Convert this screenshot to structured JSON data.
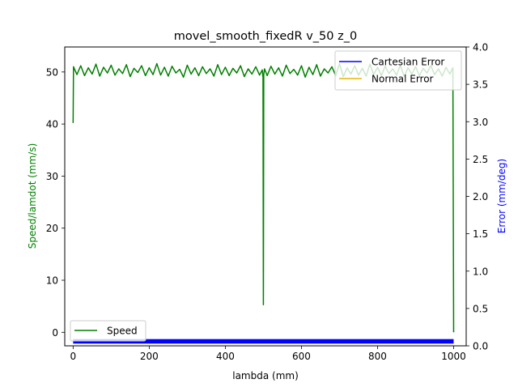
{
  "chart_data": {
    "type": "line",
    "title": "movel_smooth_fixedR v_50 z_0",
    "xlabel": "lambda (mm)",
    "ylabel_left": "Speed/lamdot (mm/s)",
    "ylabel_right": "Error (mm/deg)",
    "xlim": [
      -22,
      1033
    ],
    "ylim_left": [
      -2.6,
      54.8
    ],
    "ylim_right": [
      0.0,
      4.0
    ],
    "x_ticks": [
      0,
      200,
      400,
      600,
      800,
      1000
    ],
    "x_tick_labels": [
      "0",
      "200",
      "400",
      "600",
      "800",
      "1000"
    ],
    "y_left_ticks": [
      0,
      10,
      20,
      30,
      40,
      50
    ],
    "y_left_tick_labels": [
      "0",
      "10",
      "20",
      "30",
      "40",
      "50"
    ],
    "y_right_ticks": [
      0.0,
      0.5,
      1.0,
      1.5,
      2.0,
      2.5,
      3.0,
      3.5,
      4.0
    ],
    "y_right_tick_labels": [
      "0.0",
      "0.5",
      "1.0",
      "1.5",
      "2.0",
      "2.5",
      "3.0",
      "3.5",
      "4.0"
    ],
    "grid": false,
    "legends": [
      {
        "placement": "lower-left",
        "entries": [
          {
            "name": "Speed",
            "color": "#008000"
          }
        ]
      },
      {
        "placement": "upper-right",
        "entries": [
          {
            "name": "Cartesian Error",
            "color": "#0000ff"
          },
          {
            "name": "Normal Error",
            "color": "#e6b800"
          }
        ]
      }
    ],
    "series": [
      {
        "name": "Speed",
        "axis": "left",
        "color": "#008000",
        "x": [
          0,
          1,
          10,
          20,
          30,
          40,
          50,
          60,
          70,
          80,
          90,
          100,
          110,
          120,
          130,
          140,
          150,
          160,
          170,
          180,
          190,
          200,
          210,
          220,
          230,
          240,
          250,
          260,
          270,
          280,
          290,
          300,
          310,
          320,
          330,
          340,
          350,
          360,
          370,
          380,
          390,
          400,
          410,
          420,
          430,
          440,
          450,
          460,
          470,
          480,
          490,
          497,
          499,
          500,
          501,
          503,
          510,
          520,
          530,
          540,
          550,
          560,
          570,
          580,
          590,
          600,
          610,
          620,
          630,
          640,
          650,
          660,
          670,
          680,
          690,
          700,
          710,
          720,
          730,
          740,
          750,
          760,
          770,
          780,
          790,
          800,
          810,
          820,
          830,
          840,
          850,
          860,
          870,
          880,
          890,
          900,
          910,
          920,
          930,
          940,
          950,
          960,
          970,
          980,
          990,
          995,
          998,
          1000
        ],
        "y": [
          40.2,
          51.0,
          49.5,
          51.2,
          49.3,
          50.8,
          49.6,
          51.5,
          49.2,
          50.9,
          49.8,
          51.3,
          49.4,
          50.6,
          49.7,
          51.4,
          49.1,
          50.7,
          49.9,
          51.2,
          49.3,
          50.8,
          49.5,
          51.6,
          49.4,
          50.9,
          49.2,
          51.1,
          49.8,
          50.5,
          49.0,
          51.3,
          49.6,
          50.8,
          49.3,
          51.0,
          49.7,
          50.6,
          49.2,
          51.4,
          49.5,
          50.9,
          49.3,
          50.7,
          49.8,
          51.2,
          49.1,
          50.6,
          49.6,
          51.0,
          49.4,
          50.4,
          49.0,
          5.3,
          49.5,
          50.6,
          49.3,
          51.1,
          49.6,
          50.8,
          49.2,
          51.3,
          49.7,
          50.5,
          49.4,
          51.2,
          49.0,
          50.9,
          49.5,
          51.4,
          49.2,
          50.6,
          49.8,
          51.0,
          49.3,
          51.6,
          49.1,
          50.8,
          49.6,
          51.2,
          49.4,
          50.7,
          49.2,
          51.5,
          49.5,
          50.9,
          49.3,
          51.1,
          49.7,
          50.6,
          49.4,
          51.3,
          49.1,
          50.8,
          49.6,
          51.0,
          49.3,
          50.7,
          49.8,
          51.2,
          49.5,
          50.6,
          49.2,
          50.9,
          49.6,
          50.4,
          50.8,
          0.0
        ]
      },
      {
        "name": "Cartesian Error",
        "axis": "right",
        "color": "#0000ff",
        "x_range": [
          0,
          1000
        ],
        "y_band": [
          0.03,
          0.09
        ]
      },
      {
        "name": "Normal Error",
        "axis": "right",
        "color": "#e6b800",
        "x": [],
        "y": []
      }
    ]
  }
}
